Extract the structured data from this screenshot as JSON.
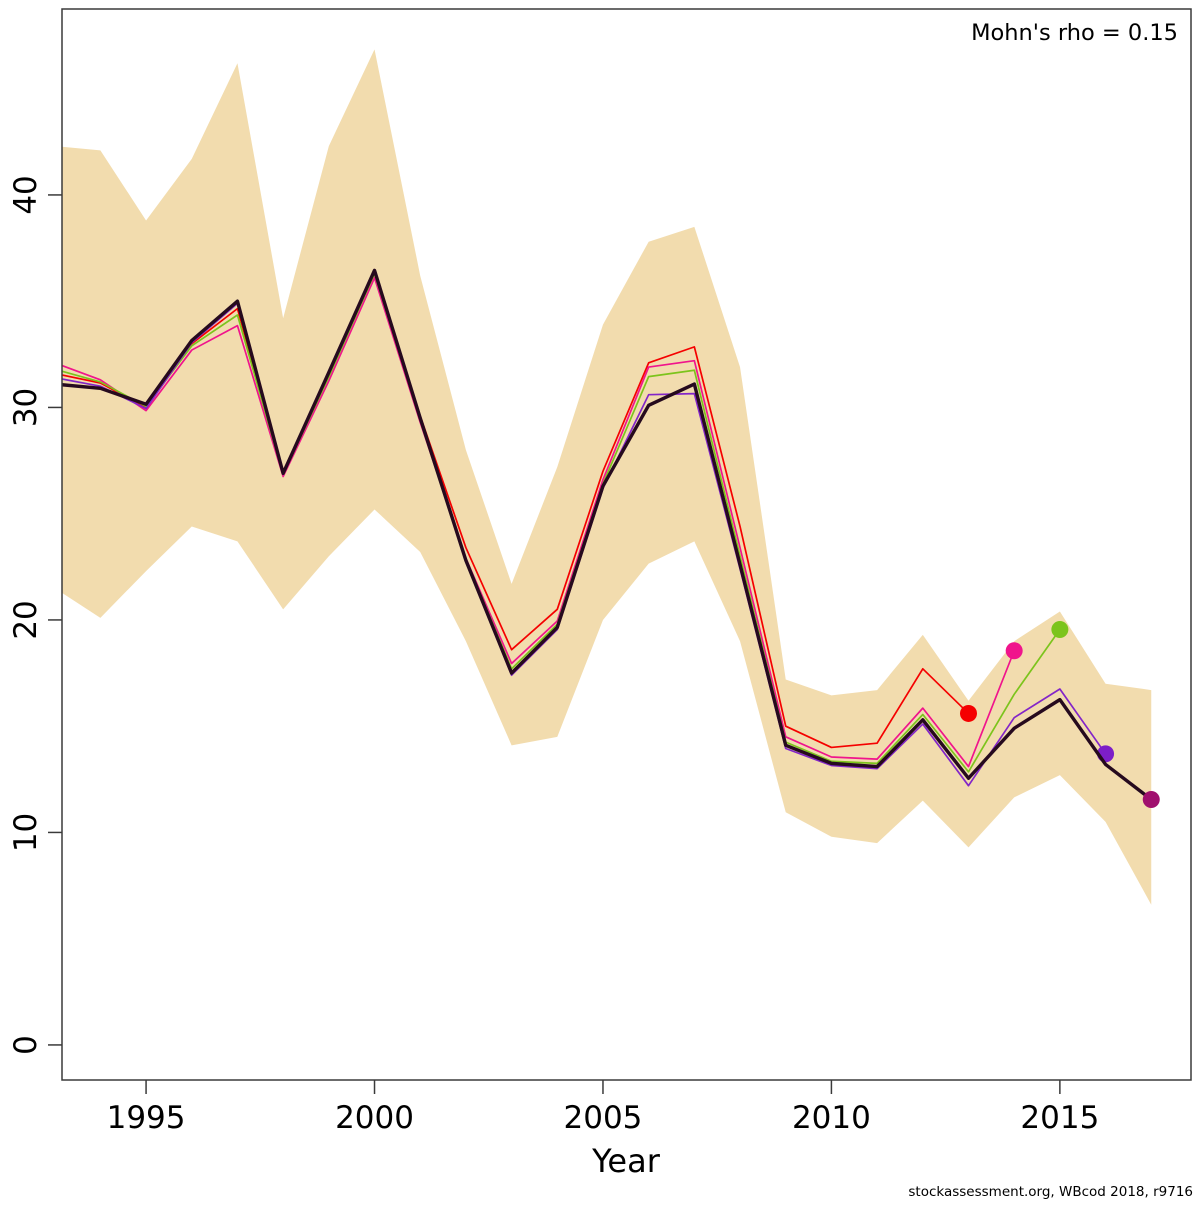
{
  "annotation": {
    "mohns_rho_label": "Mohn's rho = 0.15"
  },
  "footer_text": "stockassessment.org, WBcod 2018, r9716",
  "chart_data": {
    "type": "line",
    "title": "",
    "xlabel": "Year",
    "ylabel": "",
    "grid": false,
    "legend_position": "none",
    "xlim": [
      1993.16,
      2017.87
    ],
    "ylim": [
      -1.65,
      48.75
    ],
    "x_ticks": [
      1995,
      2000,
      2005,
      2010,
      2015
    ],
    "y_ticks": [
      0,
      10,
      20,
      30,
      40
    ],
    "axis_color": "#3a3a3a",
    "band": {
      "label": "final-run-confidence-band",
      "color": "#F2DCAE",
      "years": [
        1993,
        1994,
        1995,
        1996,
        1997,
        1998,
        1999,
        2000,
        2001,
        2002,
        2003,
        2004,
        2005,
        2006,
        2007,
        2008,
        2009,
        2010,
        2011,
        2012,
        2013,
        2014,
        2015,
        2016,
        2017
      ],
      "upper": [
        42.3,
        42.1,
        38.8,
        41.7,
        46.2,
        34.2,
        42.3,
        46.85,
        36.2,
        28.0,
        21.7,
        27.2,
        33.9,
        37.8,
        38.5,
        31.9,
        17.2,
        16.45,
        16.7,
        19.3,
        16.2,
        19.0,
        20.4,
        17.0,
        16.7
      ],
      "lower": [
        21.5,
        20.1,
        22.3,
        24.4,
        23.7,
        20.5,
        23.0,
        25.2,
        23.2,
        19.0,
        14.1,
        14.5,
        20.0,
        22.65,
        23.7,
        19.0,
        10.95,
        9.8,
        9.5,
        11.5,
        9.3,
        11.65,
        12.7,
        10.5,
        6.6
      ]
    },
    "series": [
      {
        "name": "retro-peel-2013",
        "color": "#F50000",
        "dot_color": "#F50000",
        "years": [
          1993,
          1994,
          1995,
          1996,
          1997,
          1998,
          1999,
          2000,
          2001,
          2002,
          2003,
          2004,
          2005,
          2006,
          2007,
          2008,
          2009,
          2010,
          2011,
          2012,
          2013
        ],
        "values": [
          31.6,
          31.15,
          30.0,
          33.0,
          34.65,
          27.0,
          31.55,
          36.3,
          29.6,
          23.4,
          18.6,
          20.5,
          27.0,
          32.1,
          32.85,
          24.4,
          15.0,
          14.0,
          14.2,
          17.7,
          15.6
        ]
      },
      {
        "name": "retro-peel-2014",
        "color": "#F0148C",
        "dot_color": "#F0148C",
        "years": [
          1993,
          1994,
          1995,
          1996,
          1997,
          1998,
          1999,
          2000,
          2001,
          2002,
          2003,
          2004,
          2005,
          2006,
          2007,
          2008,
          2009,
          2010,
          2011,
          2012,
          2013,
          2014
        ],
        "values": [
          32.1,
          31.3,
          29.85,
          32.7,
          33.85,
          26.75,
          31.25,
          36.1,
          29.3,
          22.9,
          17.95,
          19.95,
          26.6,
          31.9,
          32.2,
          23.4,
          14.5,
          13.55,
          13.45,
          15.85,
          13.1,
          18.55
        ]
      },
      {
        "name": "retro-peel-2015",
        "color": "#7CC41C",
        "dot_color": "#7CC41C",
        "years": [
          1993,
          1994,
          1995,
          1996,
          1997,
          1998,
          1999,
          2000,
          2001,
          2002,
          2003,
          2004,
          2005,
          2006,
          2007,
          2008,
          2009,
          2010,
          2011,
          2012,
          2013,
          2014,
          2015
        ],
        "values": [
          31.8,
          31.2,
          30.05,
          32.9,
          34.35,
          26.85,
          31.45,
          36.3,
          29.45,
          22.85,
          17.7,
          19.8,
          26.4,
          31.45,
          31.75,
          23.0,
          14.25,
          13.35,
          13.25,
          15.55,
          12.85,
          16.5,
          19.55
        ]
      },
      {
        "name": "retro-peel-2016",
        "color": "#8325C8",
        "dot_color": "#7D1EC8",
        "years": [
          1993,
          1994,
          1995,
          1996,
          1997,
          1998,
          1999,
          2000,
          2001,
          2002,
          2003,
          2004,
          2005,
          2006,
          2007,
          2008,
          2009,
          2010,
          2011,
          2012,
          2013,
          2014,
          2015,
          2016
        ],
        "values": [
          31.4,
          31.0,
          29.95,
          33.05,
          34.9,
          26.85,
          31.6,
          36.4,
          29.45,
          22.75,
          17.4,
          19.55,
          26.2,
          30.6,
          30.65,
          22.4,
          13.95,
          13.15,
          13.0,
          15.1,
          12.2,
          15.4,
          16.75,
          13.7
        ]
      },
      {
        "name": "final-run",
        "color": "#260A1E",
        "dot_color": "#A0106E",
        "years": [
          1993,
          1994,
          1995,
          1996,
          1997,
          1998,
          1999,
          2000,
          2001,
          2002,
          2003,
          2004,
          2005,
          2006,
          2007,
          2008,
          2009,
          2010,
          2011,
          2012,
          2013,
          2014,
          2015,
          2016,
          2017
        ],
        "values": [
          31.1,
          30.9,
          30.15,
          33.15,
          35.0,
          26.9,
          31.65,
          36.45,
          29.5,
          22.8,
          17.5,
          19.65,
          26.3,
          30.1,
          31.1,
          22.6,
          14.1,
          13.25,
          13.1,
          15.3,
          12.55,
          14.9,
          16.25,
          13.2,
          11.55
        ]
      }
    ]
  }
}
